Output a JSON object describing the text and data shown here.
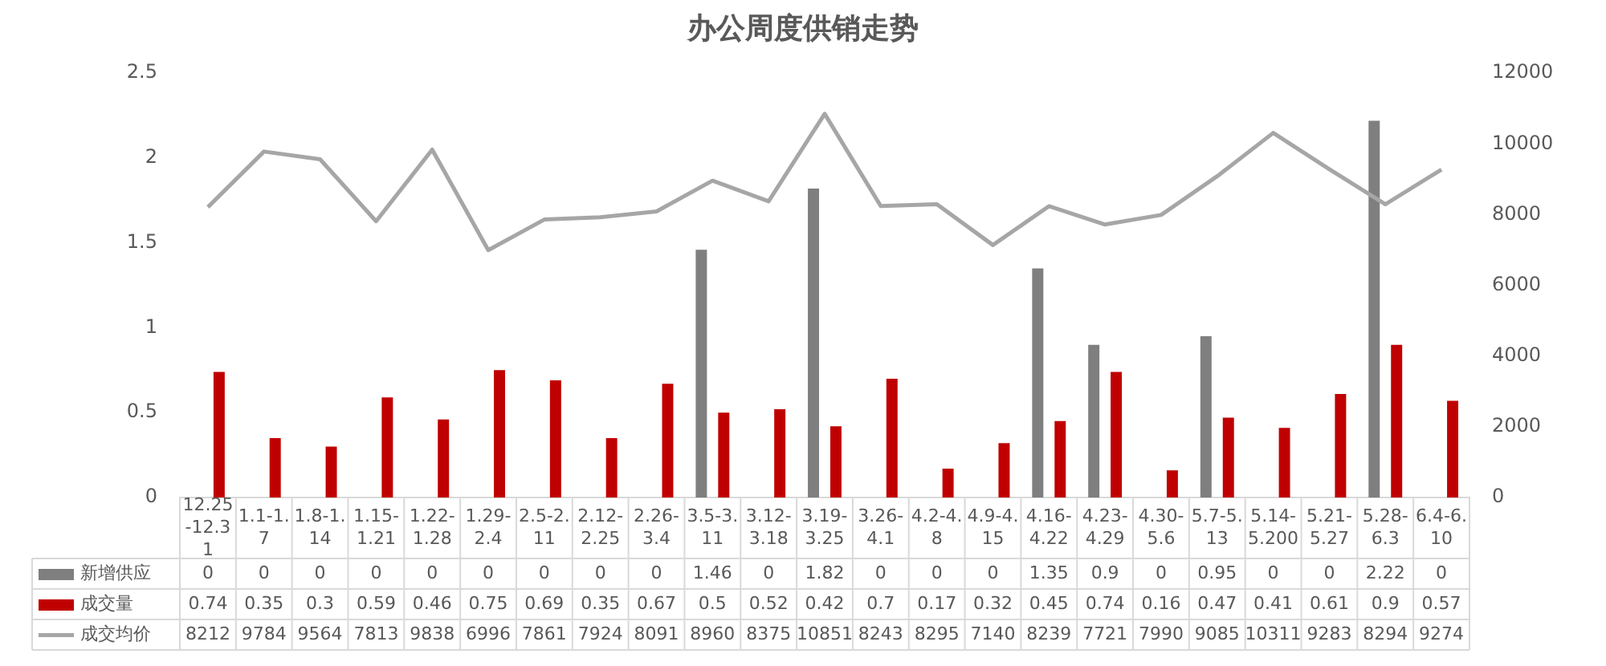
{
  "chart_data": {
    "type": "bar",
    "title": "办公周度供销走势",
    "categories": [
      "12.25-12.31",
      "1.1-1.7",
      "1.8-1.14",
      "1.15-1.21",
      "1.22-1.28",
      "1.29-2.4",
      "2.5-2.11",
      "2.12-2.25",
      "2.26-3.4",
      "3.5-3.11",
      "3.12-3.18",
      "3.19-3.25",
      "3.26-4.1",
      "4.2-4.8",
      "4.9-4.15",
      "4.16-4.22",
      "4.23-4.29",
      "4.30-5.6",
      "5.7-5.13",
      "5.14-5.200",
      "5.21-5.27",
      "5.28-6.3",
      "6.4-6.10"
    ],
    "series": [
      {
        "name": "新增供应",
        "color": "#7f7f7f",
        "values": [
          0,
          0,
          0,
          0,
          0,
          0,
          0,
          0,
          0,
          1.46,
          0,
          1.82,
          0,
          0,
          0,
          1.35,
          0.9,
          0,
          0.95,
          0,
          0,
          2.22,
          0
        ]
      },
      {
        "name": "成交量",
        "color": "#c00000",
        "values": [
          0.74,
          0.35,
          0.3,
          0.59,
          0.46,
          0.75,
          0.69,
          0.35,
          0.67,
          0.5,
          0.52,
          0.42,
          0.7,
          0.17,
          0.32,
          0.45,
          0.74,
          0.16,
          0.47,
          0.41,
          0.61,
          0.9,
          0.57
        ]
      },
      {
        "name": "成交均价",
        "type": "line",
        "axis": "y2",
        "color": "#a6a6a6",
        "values": [
          8212,
          9784,
          9564,
          7813,
          9838,
          6996,
          7861,
          7924,
          8091,
          8960,
          8375,
          10851,
          8243,
          8295,
          7140,
          8239,
          7721,
          7990,
          9085,
          10311,
          9283,
          8294,
          9274
        ]
      }
    ],
    "ylim": [
      0,
      2.5
    ],
    "yticks": [
      0,
      0.5,
      1,
      1.5,
      2,
      2.5
    ],
    "y2lim": [
      0,
      12000
    ],
    "y2ticks": [
      0,
      2000,
      4000,
      6000,
      8000,
      10000,
      12000
    ],
    "grid": false,
    "legend": "bottom",
    "data_labels": true,
    "marker": "none"
  }
}
